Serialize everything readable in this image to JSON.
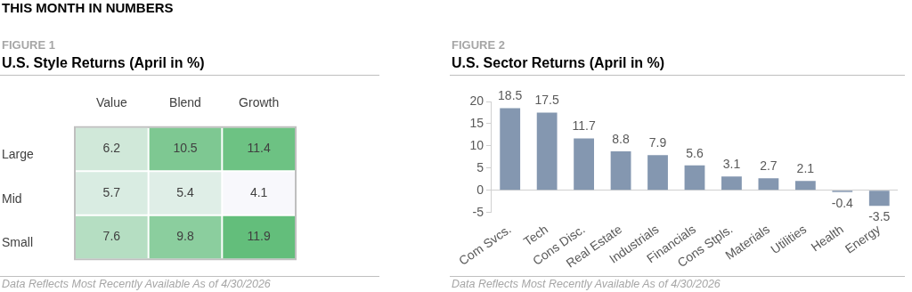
{
  "chart_data": [
    {
      "type": "heatmap",
      "title": "U.S. Style Returns (April in %)",
      "categories": [
        "Value",
        "Blend",
        "Growth"
      ],
      "y_categories": [
        "Large",
        "Mid",
        "Small"
      ],
      "cells": [
        [
          6.2,
          10.5,
          11.4
        ],
        [
          5.7,
          5.4,
          4.1
        ],
        [
          7.6,
          9.8,
          11.9
        ]
      ],
      "data_labels": true,
      "annotations": [
        "THIS MONTH IN NUMBERS",
        "FIGURE 1",
        "Data Reflects Most Recently Available As of 4/30/2026"
      ]
    },
    {
      "type": "bar",
      "title": "U.S. Sector Returns (April in %)",
      "categories": [
        "Com Svcs.",
        "Tech",
        "Cons Disc.",
        "Real Estate",
        "Industrials",
        "Financials",
        "Cons Stpls.",
        "Materials",
        "Utilities",
        "Health",
        "Energy"
      ],
      "values": [
        18.5,
        17.5,
        11.7,
        8.8,
        7.9,
        5.6,
        3.1,
        2.7,
        2.1,
        -0.4,
        -3.5
      ],
      "color": "#8497b0",
      "ylim": [
        -5,
        20
      ],
      "yticks": [
        -5,
        0,
        5,
        10,
        15,
        20
      ],
      "data_labels": true,
      "grid": false,
      "annotations": [
        "FIGURE 2",
        "Data Reflects Most Recently Available As of 4/30/2026"
      ]
    }
  ]
}
